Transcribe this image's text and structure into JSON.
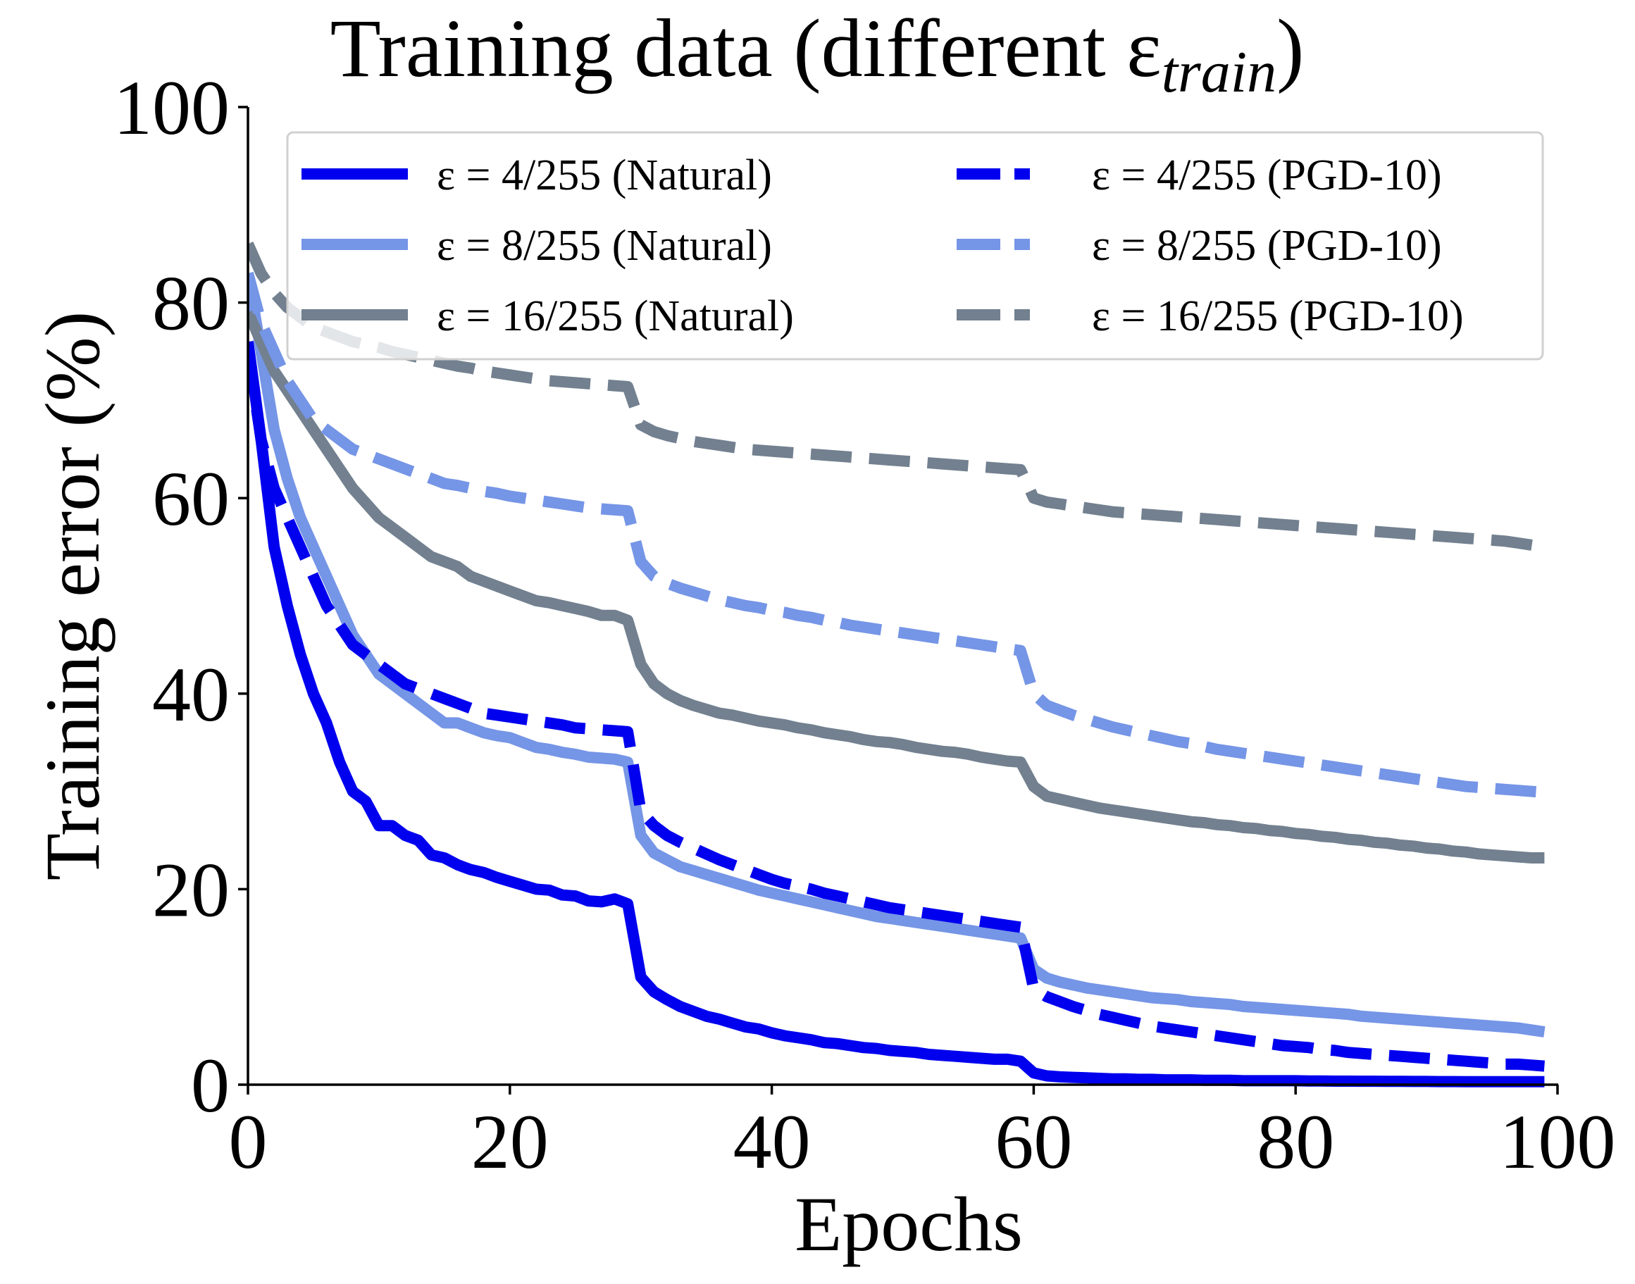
{
  "chart_data": {
    "type": "line",
    "title": "Training data (different ε",
    "title_subscript": "train",
    "title_close": ")",
    "xlabel": "Epochs",
    "ylabel": "Training error (%)",
    "xlim": [
      0,
      100
    ],
    "ylim": [
      0,
      100
    ],
    "xticks": [
      0,
      20,
      40,
      60,
      80,
      100
    ],
    "yticks": [
      0,
      20,
      40,
      60,
      80,
      100
    ],
    "xtick_labels": [
      "0",
      "20",
      "40",
      "60",
      "80",
      "100"
    ],
    "ytick_labels": [
      "0",
      "20",
      "40",
      "60",
      "80",
      "100"
    ],
    "grid": false,
    "legend_position": "top-right",
    "legend_columns": 2,
    "series": [
      {
        "name": "ε = 4/255 (Natural)",
        "color": "#0000ee",
        "style": "solid",
        "x_start": 0,
        "values": [
          76,
          66,
          55,
          49,
          44,
          40,
          37,
          33,
          30,
          29,
          26.5,
          26.5,
          25.5,
          25,
          23.5,
          23.2,
          22.5,
          22,
          21.7,
          21.2,
          20.8,
          20.4,
          20,
          19.9,
          19.4,
          19.3,
          18.8,
          18.7,
          19,
          18.5,
          11,
          9.5,
          8.7,
          8,
          7.5,
          7,
          6.7,
          6.3,
          5.9,
          5.7,
          5.3,
          5,
          4.8,
          4.6,
          4.3,
          4.2,
          4,
          3.8,
          3.7,
          3.5,
          3.4,
          3.3,
          3.1,
          3,
          2.9,
          2.8,
          2.7,
          2.6,
          2.6,
          2.4,
          1.2,
          0.9,
          0.8,
          0.75,
          0.7,
          0.65,
          0.6,
          0.6,
          0.55,
          0.55,
          0.5,
          0.5,
          0.5,
          0.45,
          0.45,
          0.45,
          0.4,
          0.4,
          0.4,
          0.4,
          0.4,
          0.38,
          0.38,
          0.36,
          0.36,
          0.35,
          0.35,
          0.34,
          0.34,
          0.33,
          0.33,
          0.32,
          0.32,
          0.31,
          0.31,
          0.3,
          0.3,
          0.3,
          0.3,
          0.3
        ]
      },
      {
        "name": "ε = 8/255 (Natural)",
        "color": "#7595e6",
        "style": "solid",
        "x_start": 0,
        "values": [
          83,
          75,
          67,
          62,
          58,
          55,
          52,
          49,
          46,
          44,
          42,
          41,
          40,
          39,
          38,
          37,
          37,
          36.5,
          36,
          35.7,
          35.5,
          35,
          34.5,
          34.3,
          34,
          33.8,
          33.5,
          33.4,
          33.3,
          33,
          25.5,
          23.7,
          23,
          22.3,
          21.9,
          21.5,
          21.1,
          20.7,
          20.3,
          19.9,
          19.6,
          19.3,
          19,
          18.7,
          18.4,
          18.1,
          17.8,
          17.5,
          17.2,
          17,
          16.8,
          16.6,
          16.4,
          16.2,
          16,
          15.8,
          15.6,
          15.4,
          15.2,
          15,
          11.8,
          10.9,
          10.5,
          10.2,
          9.9,
          9.7,
          9.5,
          9.3,
          9.1,
          8.9,
          8.8,
          8.7,
          8.5,
          8.4,
          8.3,
          8.2,
          8,
          7.9,
          7.8,
          7.7,
          7.6,
          7.5,
          7.4,
          7.3,
          7.2,
          7,
          6.9,
          6.8,
          6.7,
          6.6,
          6.5,
          6.4,
          6.3,
          6.2,
          6.1,
          6,
          5.9,
          5.8,
          5.6,
          5.4
        ]
      },
      {
        "name": "ε = 16/255 (Natural)",
        "color": "#72808f",
        "style": "solid",
        "x_start": 0,
        "values": [
          79,
          76,
          73,
          71,
          69,
          67,
          65,
          63,
          61,
          59.5,
          58,
          57,
          56,
          55,
          54,
          53.5,
          53,
          52,
          51.5,
          51,
          50.5,
          50,
          49.5,
          49.3,
          49,
          48.7,
          48.4,
          48,
          48,
          47.5,
          43,
          41,
          40,
          39.3,
          38.8,
          38.4,
          38,
          37.8,
          37.5,
          37.2,
          37,
          36.8,
          36.5,
          36.3,
          36,
          35.8,
          35.6,
          35.3,
          35.1,
          35,
          34.8,
          34.5,
          34.3,
          34.1,
          34,
          33.8,
          33.5,
          33.3,
          33.1,
          33,
          30.5,
          29.5,
          29.2,
          28.9,
          28.6,
          28.3,
          28.1,
          27.9,
          27.7,
          27.5,
          27.3,
          27.1,
          26.9,
          26.8,
          26.6,
          26.5,
          26.3,
          26.2,
          26,
          25.9,
          25.7,
          25.6,
          25.4,
          25.3,
          25.1,
          25,
          24.8,
          24.7,
          24.5,
          24.4,
          24.2,
          24.1,
          23.9,
          23.8,
          23.6,
          23.5,
          23.4,
          23.3,
          23.2,
          23.2
        ]
      },
      {
        "name": "ε = 4/255 (PGD-10)",
        "color": "#0000ee",
        "style": "dashed",
        "x_start": 0,
        "values": [
          75,
          66,
          61,
          58,
          55,
          52,
          49,
          47,
          45,
          44,
          43,
          42,
          41,
          40.5,
          40,
          39.5,
          39,
          38.5,
          38,
          37.8,
          37.6,
          37.4,
          37.2,
          37,
          36.8,
          36.5,
          36.4,
          36.3,
          36.2,
          36.1,
          28,
          26.5,
          25.5,
          24.8,
          24.2,
          23.6,
          23,
          22.5,
          22,
          21.5,
          21,
          20.6,
          20.3,
          20,
          19.6,
          19.3,
          19,
          18.7,
          18.4,
          18.1,
          17.9,
          17.7,
          17.5,
          17.3,
          17.1,
          16.9,
          16.7,
          16.5,
          16.3,
          16.1,
          9.8,
          9,
          8.5,
          8,
          7.6,
          7.2,
          6.9,
          6.6,
          6.3,
          6,
          5.8,
          5.6,
          5.4,
          5.2,
          5,
          4.8,
          4.6,
          4.4,
          4.2,
          4,
          3.9,
          3.8,
          3.6,
          3.5,
          3.3,
          3.2,
          3.1,
          3,
          2.9,
          2.8,
          2.7,
          2.6,
          2.5,
          2.4,
          2.3,
          2.2,
          2.1,
          2.1,
          2,
          1.9
        ]
      },
      {
        "name": "ε = 8/255 (PGD-10)",
        "color": "#7595e6",
        "style": "dashed",
        "x_start": 0,
        "values": [
          83,
          78,
          75,
          72,
          70,
          68,
          67,
          66,
          65,
          64.5,
          64,
          63.5,
          63,
          62.5,
          62,
          61.5,
          61.3,
          61,
          60.7,
          60.5,
          60.2,
          60,
          59.8,
          59.6,
          59.4,
          59.2,
          59,
          58.9,
          58.8,
          58.7,
          53.5,
          52,
          51.3,
          50.8,
          50.4,
          50,
          49.6,
          49.3,
          49,
          48.8,
          48.5,
          48.3,
          48,
          47.8,
          47.5,
          47.3,
          47,
          46.8,
          46.6,
          46.4,
          46.2,
          46,
          45.8,
          45.6,
          45.4,
          45.2,
          45,
          44.8,
          44.6,
          44.4,
          40,
          38.8,
          38.3,
          37.8,
          37.4,
          37,
          36.6,
          36.3,
          36,
          35.7,
          35.4,
          35.1,
          34.9,
          34.6,
          34.3,
          34.1,
          33.9,
          33.7,
          33.5,
          33.3,
          33.1,
          32.9,
          32.7,
          32.5,
          32.3,
          32.1,
          31.9,
          31.7,
          31.5,
          31.3,
          31.1,
          30.9,
          30.7,
          30.5,
          30.4,
          30.3,
          30.2,
          30.1,
          30,
          29.9
        ]
      },
      {
        "name": "ε = 16/255 (PGD-10)",
        "color": "#72808f",
        "style": "dashed",
        "x_start": 0,
        "values": [
          86,
          83,
          81,
          79.5,
          78.5,
          77.5,
          77,
          76.5,
          76,
          75.7,
          75.4,
          75,
          74.7,
          74.4,
          74.1,
          73.8,
          73.5,
          73.3,
          73,
          72.8,
          72.6,
          72.4,
          72.2,
          72,
          71.9,
          71.8,
          71.7,
          71.6,
          71.5,
          71.4,
          67.5,
          66.8,
          66.4,
          66.1,
          65.8,
          65.6,
          65.4,
          65.2,
          65,
          64.9,
          64.8,
          64.7,
          64.6,
          64.5,
          64.4,
          64.3,
          64.2,
          64.1,
          64,
          63.9,
          63.8,
          63.7,
          63.6,
          63.5,
          63.4,
          63.3,
          63.2,
          63.1,
          63,
          62.9,
          60,
          59.6,
          59.4,
          59.2,
          59,
          58.8,
          58.6,
          58.5,
          58.4,
          58.3,
          58.2,
          58.1,
          58,
          57.9,
          57.8,
          57.7,
          57.6,
          57.5,
          57.4,
          57.3,
          57.2,
          57.1,
          57,
          56.9,
          56.8,
          56.7,
          56.6,
          56.5,
          56.4,
          56.3,
          56.2,
          56.1,
          56,
          55.9,
          55.8,
          55.7,
          55.6,
          55.4,
          55.2,
          55
        ]
      }
    ]
  }
}
